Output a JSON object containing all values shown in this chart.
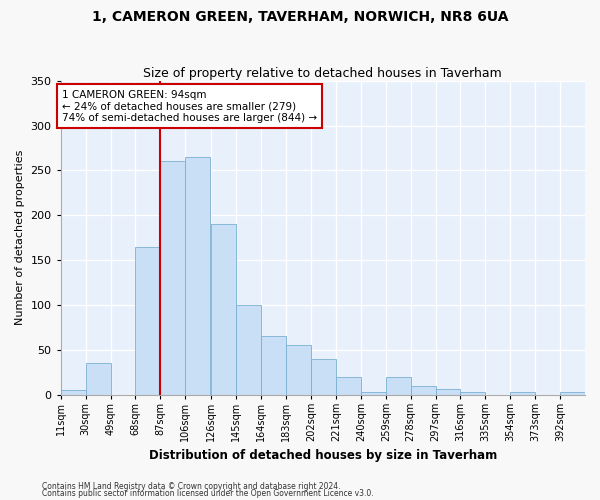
{
  "title": "1, CAMERON GREEN, TAVERHAM, NORWICH, NR8 6UA",
  "subtitle": "Size of property relative to detached houses in Taverham",
  "xlabel": "Distribution of detached houses by size in Taverham",
  "ylabel": "Number of detached properties",
  "bar_color": "#c9dff5",
  "bar_edge_color": "#7aafd4",
  "background_color": "#e8f0fb",
  "grid_color": "#ffffff",
  "annotation_text": "1 CAMERON GREEN: 94sqm\n← 24% of detached houses are smaller (279)\n74% of semi-detached houses are larger (844) →",
  "vline_x": 87,
  "vline_color": "#cc0000",
  "bins": [
    11,
    30,
    49,
    68,
    87,
    106,
    126,
    145,
    164,
    183,
    202,
    221,
    240,
    259,
    278,
    297,
    316,
    335,
    354,
    373,
    392,
    411
  ],
  "bin_labels": [
    "11sqm",
    "30sqm",
    "49sqm",
    "68sqm",
    "87sqm",
    "106sqm",
    "126sqm",
    "145sqm",
    "164sqm",
    "183sqm",
    "202sqm",
    "221sqm",
    "240sqm",
    "259sqm",
    "278sqm",
    "297sqm",
    "316sqm",
    "335sqm",
    "354sqm",
    "373sqm",
    "392sqm"
  ],
  "counts": [
    5,
    35,
    0,
    165,
    260,
    265,
    190,
    100,
    65,
    55,
    40,
    20,
    3,
    20,
    10,
    7,
    3,
    0,
    3,
    0,
    3
  ],
  "ylim": [
    0,
    350
  ],
  "yticks": [
    0,
    50,
    100,
    150,
    200,
    250,
    300,
    350
  ],
  "footer1": "Contains HM Land Registry data © Crown copyright and database right 2024.",
  "footer2": "Contains public sector information licensed under the Open Government Licence v3.0."
}
